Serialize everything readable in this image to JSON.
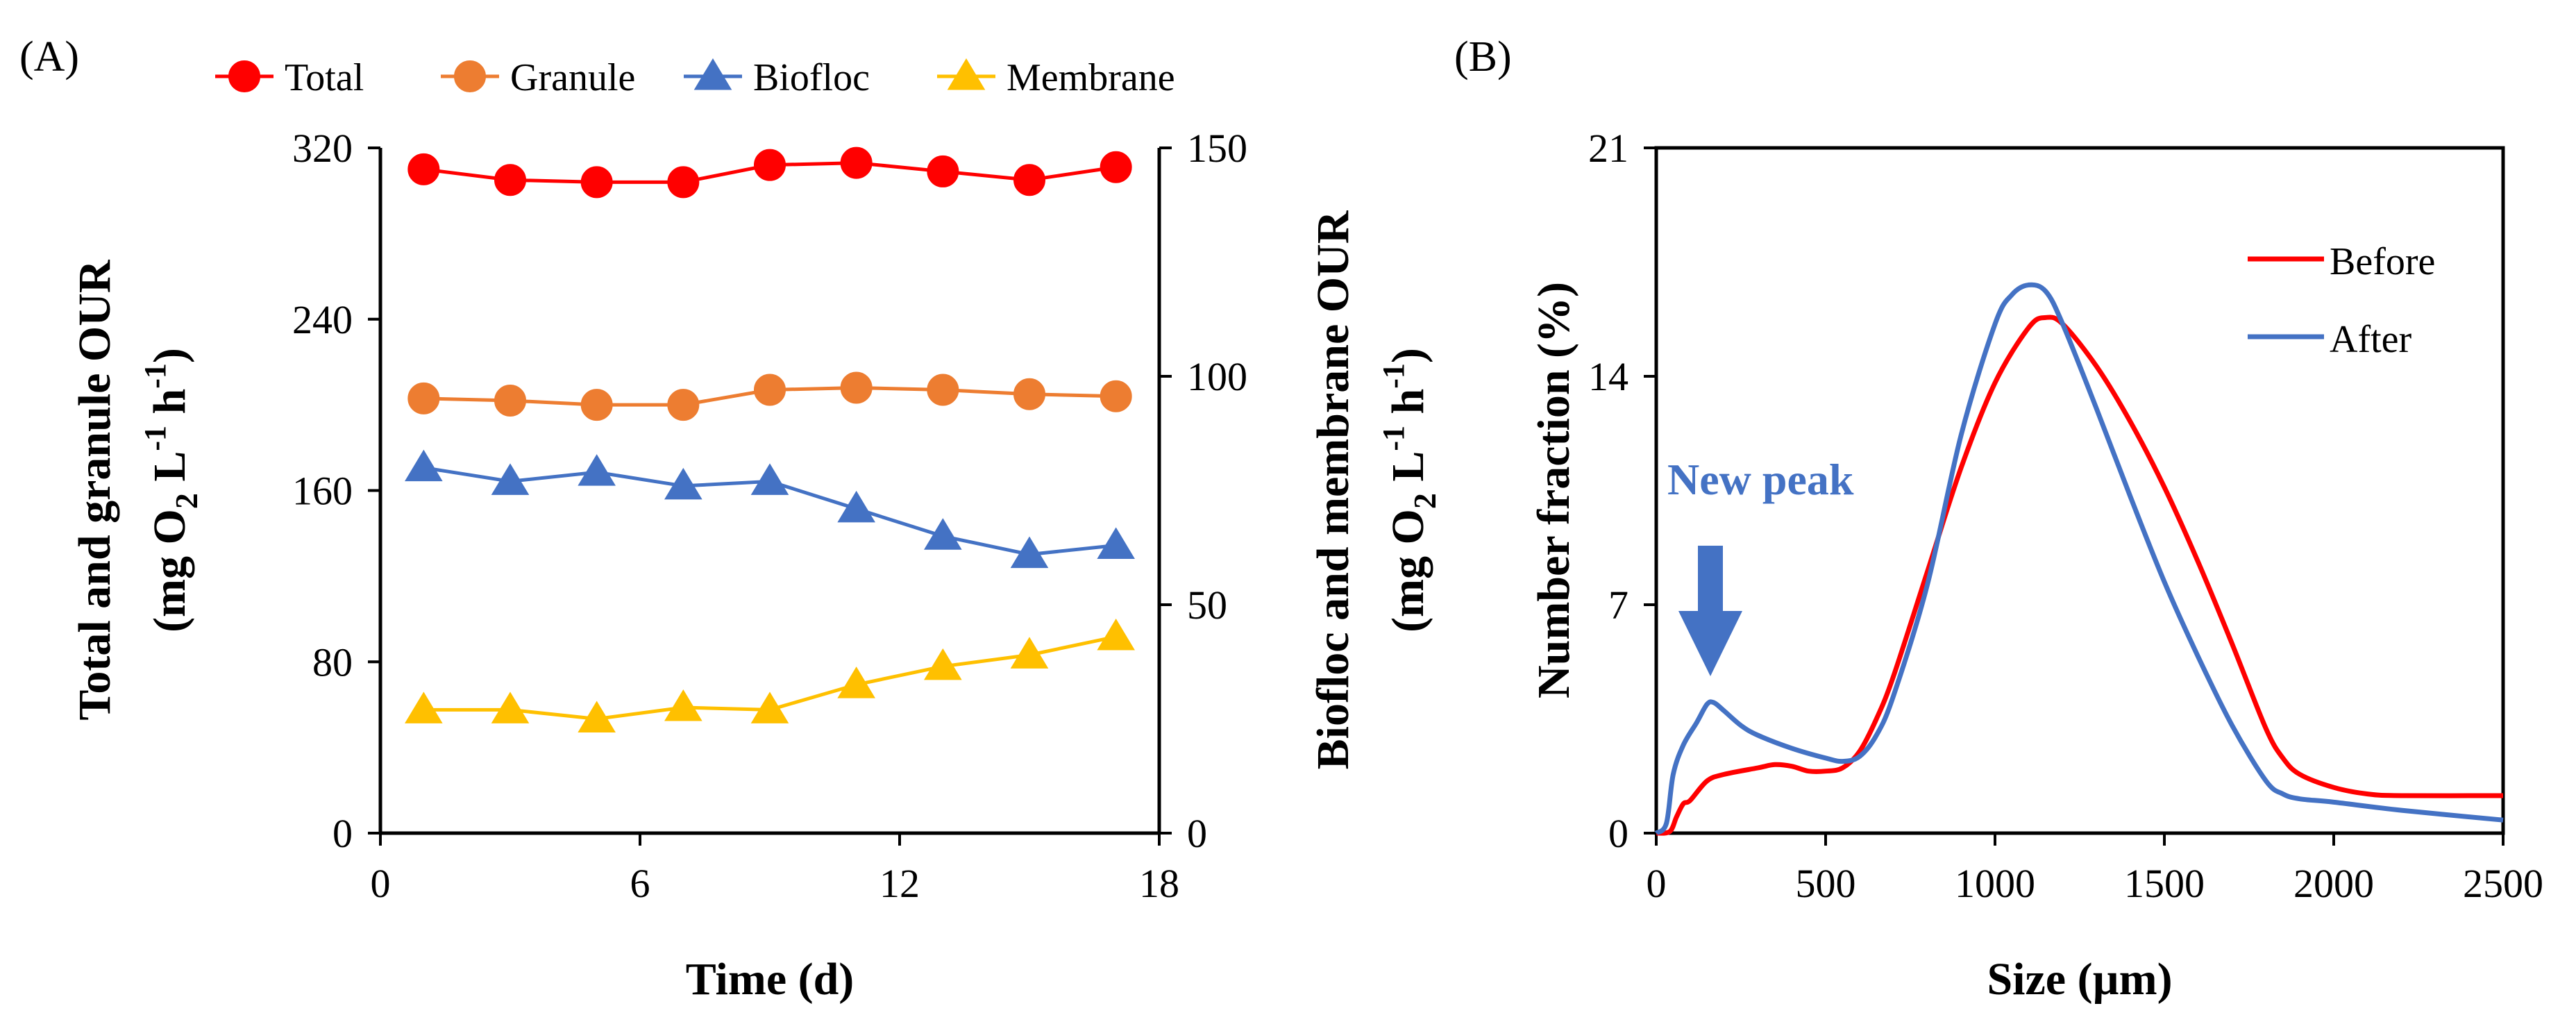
{
  "chart_data": [
    {
      "panel": "(A)",
      "type": "line",
      "title": "",
      "xlabel": "Time (d)",
      "ylabel_left": [
        "Total and granule OUR",
        "(mg O",
        "2",
        " L",
        "-1",
        " h",
        "-1",
        ")"
      ],
      "ylabel_right": [
        "Biofloc and membrane OUR",
        "(mg O",
        "2",
        " L",
        "-1",
        " h",
        "-1",
        ")"
      ],
      "xlim": [
        0,
        18
      ],
      "xticks": [
        0,
        6,
        12,
        18
      ],
      "ylim_left": [
        0,
        320
      ],
      "yticks_left": [
        0,
        80,
        160,
        240,
        320
      ],
      "ylim_right": [
        0,
        150
      ],
      "yticks_right": [
        0,
        50,
        100,
        150
      ],
      "legend_position": "top",
      "x": [
        1,
        3,
        5,
        7,
        9,
        11,
        13,
        15,
        17
      ],
      "series": [
        {
          "name": "Total",
          "axis": "left",
          "marker": "circle",
          "color": "#ff0000",
          "values": [
            310,
            305,
            304,
            304,
            312,
            313,
            309,
            305,
            311
          ]
        },
        {
          "name": "Granule",
          "axis": "left",
          "marker": "circle",
          "color": "#ed7d31",
          "values": [
            203,
            202,
            200,
            200,
            207,
            208,
            207,
            205,
            204
          ]
        },
        {
          "name": "Biofloc",
          "axis": "right",
          "marker": "triangle",
          "color": "#4472c4",
          "values": [
            80,
            77,
            79,
            76,
            77,
            71,
            65,
            61,
            63
          ]
        },
        {
          "name": "Membrane",
          "axis": "right",
          "marker": "triangle",
          "color": "#ffc000",
          "values": [
            27,
            27,
            25,
            27.5,
            27,
            32.5,
            36.5,
            39,
            43
          ]
        }
      ]
    },
    {
      "panel": "(B)",
      "type": "line",
      "title": "",
      "xlabel": "Size (µm)",
      "ylabel": "Number fraction (%)",
      "xlim": [
        0,
        2500
      ],
      "xticks": [
        0,
        500,
        1000,
        1500,
        2000,
        2500
      ],
      "ylim": [
        0,
        21
      ],
      "yticks": [
        0,
        7,
        14,
        21
      ],
      "legend_position": "top-right",
      "series": [
        {
          "name": "Before",
          "color": "#ff0000",
          "x": [
            0,
            40,
            60,
            80,
            100,
            150,
            200,
            300,
            350,
            400,
            450,
            500,
            550,
            600,
            650,
            700,
            800,
            900,
            1000,
            1100,
            1150,
            1200,
            1300,
            1400,
            1500,
            1600,
            1700,
            1800,
            1850,
            1900,
            2000,
            2100,
            2200,
            2500
          ],
          "values": [
            0,
            0.05,
            0.5,
            0.9,
            1.0,
            1.6,
            1.8,
            2.0,
            2.1,
            2.05,
            1.9,
            1.9,
            2.0,
            2.5,
            3.5,
            4.8,
            8.0,
            11.2,
            13.8,
            15.5,
            15.8,
            15.6,
            14.3,
            12.6,
            10.6,
            8.3,
            5.8,
            3.2,
            2.3,
            1.8,
            1.4,
            1.2,
            1.15,
            1.15
          ]
        },
        {
          "name": "After",
          "color": "#4472c4",
          "x": [
            0,
            30,
            50,
            80,
            120,
            150,
            170,
            200,
            250,
            300,
            400,
            500,
            550,
            600,
            650,
            700,
            800,
            900,
            1000,
            1050,
            1100,
            1150,
            1200,
            1300,
            1400,
            1500,
            1600,
            1700,
            1800,
            1850,
            1900,
            2000,
            2200,
            2500
          ],
          "values": [
            0,
            0.3,
            1.8,
            2.7,
            3.4,
            3.95,
            4.0,
            3.75,
            3.3,
            3.0,
            2.6,
            2.3,
            2.2,
            2.35,
            3.0,
            4.2,
            7.6,
            12.2,
            15.6,
            16.5,
            16.8,
            16.6,
            15.6,
            13.0,
            10.3,
            7.7,
            5.4,
            3.3,
            1.6,
            1.2,
            1.05,
            0.95,
            0.7,
            0.4
          ]
        }
      ],
      "annotation": "New peak"
    }
  ]
}
